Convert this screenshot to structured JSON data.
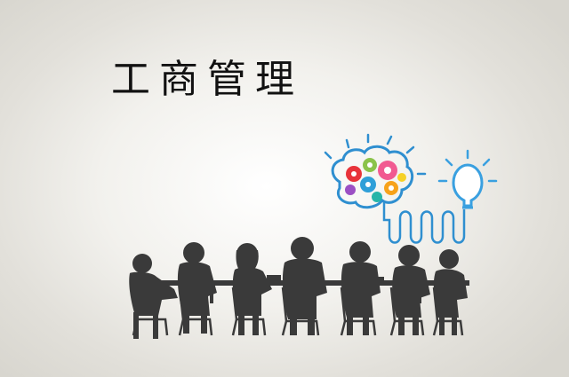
{
  "title": "工商管理",
  "colors": {
    "silhouette": "#3a3a3a",
    "wire": "#2f8fd0",
    "bulb": "#3aa0e0",
    "gear_palette": [
      "#e8333a",
      "#2f9fd8",
      "#8bc34a",
      "#f7a21b",
      "#9b4fc4",
      "#f15a91",
      "#26b5a8",
      "#f6d126"
    ]
  },
  "icons": [
    "brain-gears-icon",
    "light-bulb-icon",
    "connecting-wire-icon"
  ]
}
